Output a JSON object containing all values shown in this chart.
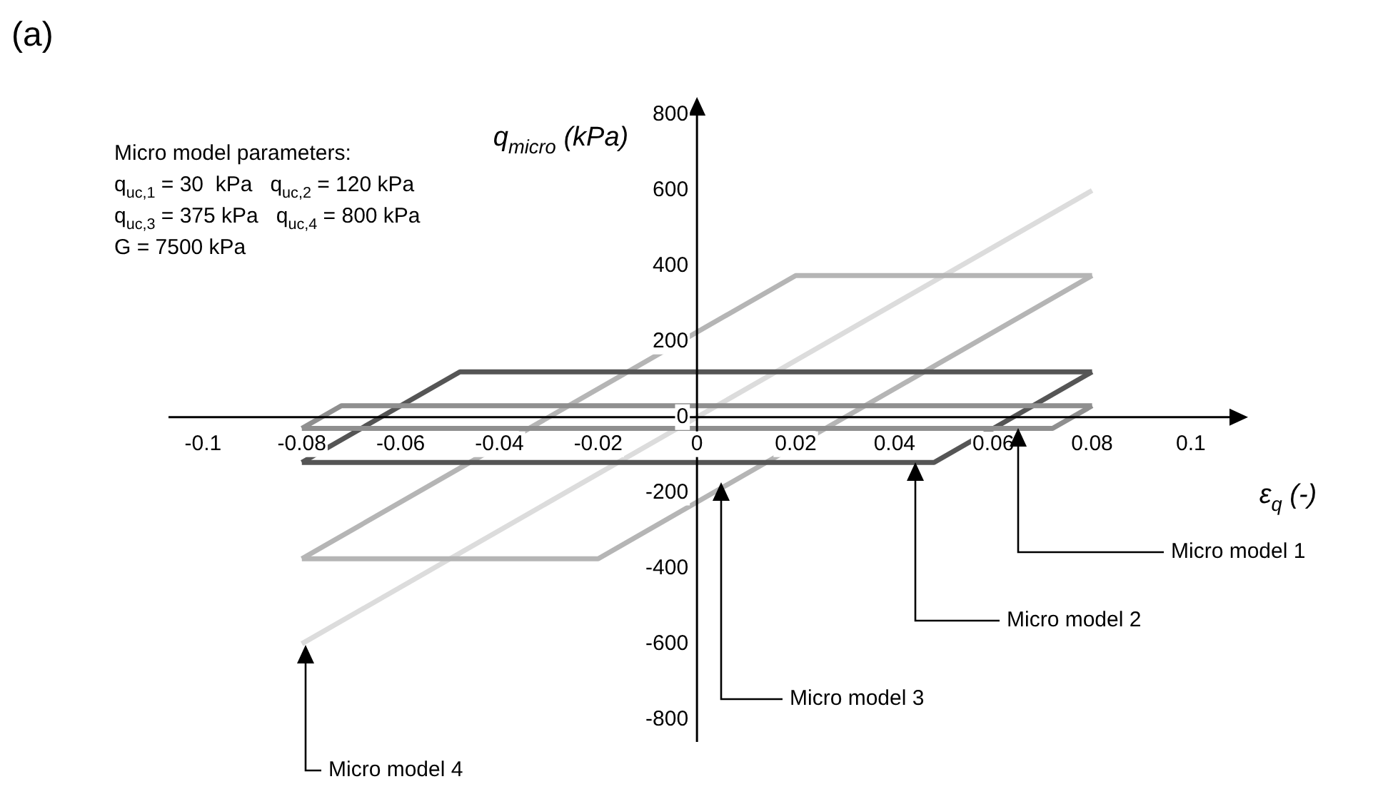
{
  "chart_data": {
    "type": "line",
    "title": "(a)",
    "xlabel": "ε$_{q}$ (-)",
    "ylabel": "q$_{micro}$ (kPa)",
    "xlim": [
      -0.107,
      0.111
    ],
    "ylim": [
      -860,
      840
    ],
    "xticks": [
      -0.1,
      -0.08,
      -0.06,
      -0.04,
      -0.02,
      0,
      0.02,
      0.04,
      0.06,
      0.08,
      0.1
    ],
    "yticks": [
      -800,
      -600,
      -400,
      -200,
      0,
      200,
      400,
      600,
      800
    ],
    "grid": false,
    "legend": false,
    "marker": "none",
    "line_style": "solid",
    "annotations": [
      "Micro model parameters:",
      "q$_{uc,1}$ = 30  kPa   q$_{uc,2}$ = 120 kPa",
      "q$_{uc,3}$ = 375 kPa   q$_{uc,4}$ = 800 kPa",
      "G = 7500 kPa"
    ],
    "series": [
      {
        "name": "Micro model 1",
        "color": "#8f8f8f",
        "x": [
          -0.08,
          -0.072,
          0.08
        ],
        "values": [
          -30,
          30,
          30
        ]
      },
      {
        "color": "#8f8f8f",
        "x": [
          -0.08,
          0.072,
          0.08
        ],
        "values": [
          -30,
          -30,
          30
        ]
      },
      {
        "name": "Micro model 2",
        "color": "#555555",
        "x": [
          -0.08,
          -0.048,
          0.08
        ],
        "values": [
          -120,
          120,
          120
        ]
      },
      {
        "color": "#555555",
        "x": [
          -0.08,
          0.048,
          0.08
        ],
        "values": [
          -120,
          -120,
          120
        ]
      },
      {
        "name": "Micro model 3",
        "color": "#b5b5b5",
        "x": [
          -0.08,
          0.02,
          0.08
        ],
        "values": [
          -375,
          375,
          375
        ]
      },
      {
        "color": "#b5b5b5",
        "x": [
          -0.08,
          -0.02,
          0.08
        ],
        "values": [
          -375,
          -375,
          375
        ]
      },
      {
        "name": "Micro model 4",
        "color": "#dcdcdc",
        "x": [
          -0.08,
          0.08
        ],
        "values": [
          -600,
          600
        ]
      }
    ]
  }
}
